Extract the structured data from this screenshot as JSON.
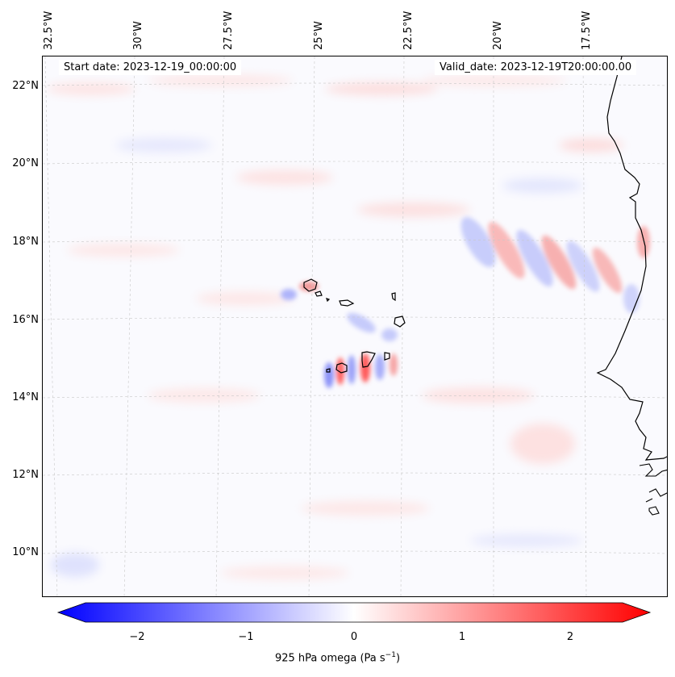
{
  "map": {
    "start_date": "Start date: 2023-12-19_00:00:00",
    "valid_date": "Valid_date: 2023-12-19T20:00:00.00",
    "lon_labels": [
      "32.5°W",
      "30°W",
      "27.5°W",
      "25°W",
      "22.5°W",
      "20°W",
      "17.5°W"
    ],
    "lat_labels": [
      "22°N",
      "20°N",
      "18°N",
      "16°N",
      "14°N",
      "12°N",
      "10°N"
    ]
  },
  "colorbar": {
    "label": "925 hPa omega (Pa s",
    "label_sup": "−1",
    "label_end": ")",
    "ticks": [
      "−2",
      "−1",
      "0",
      "1",
      "2"
    ],
    "min": -2.7,
    "max": 2.7,
    "colors": {
      "low": "#0000ff",
      "mid": "#ffffff",
      "high": "#ff0000"
    }
  }
}
